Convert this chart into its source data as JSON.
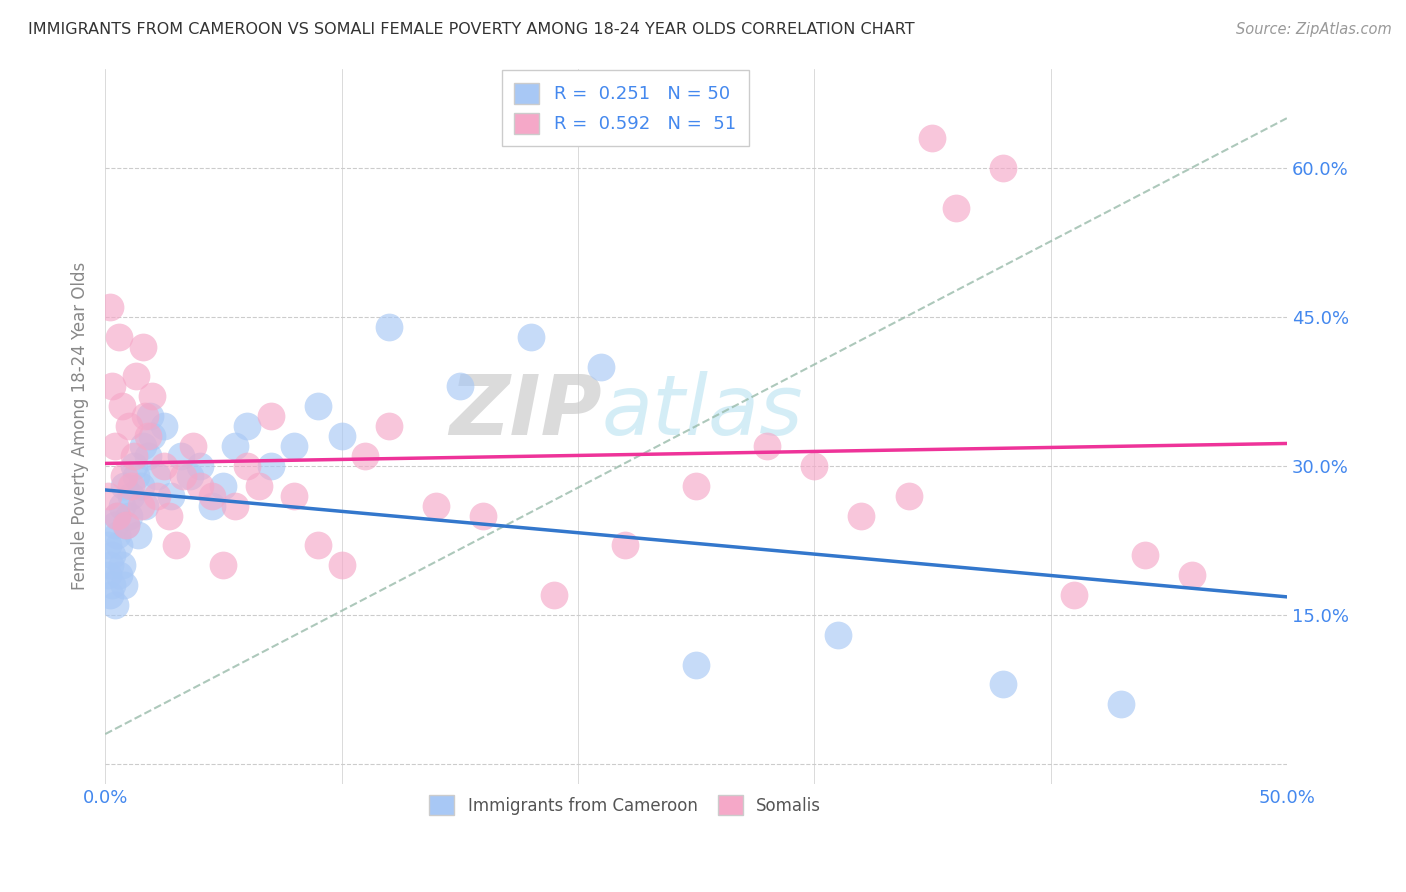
{
  "title": "IMMIGRANTS FROM CAMEROON VS SOMALI FEMALE POVERTY AMONG 18-24 YEAR OLDS CORRELATION CHART",
  "source": "Source: ZipAtlas.com",
  "ylabel": "Female Poverty Among 18-24 Year Olds",
  "xlim": [
    0.0,
    0.5
  ],
  "ylim": [
    -0.02,
    0.7
  ],
  "cameroon_R": 0.251,
  "cameroon_N": 50,
  "somali_R": 0.592,
  "somali_N": 51,
  "cameroon_color": "#a8c8f5",
  "somali_color": "#f5a8c8",
  "trend_cameroon_color": "#3377cc",
  "trend_somali_color": "#ee3399",
  "trend_dashed_color": "#99bbaa",
  "watermark_zip": "ZIP",
  "watermark_atlas": "atlas",
  "legend_label_1": "Immigrants from Cameroon",
  "legend_label_2": "Somalis",
  "cameroon_x": [
    0.001,
    0.001,
    0.002,
    0.002,
    0.003,
    0.003,
    0.004,
    0.004,
    0.005,
    0.005,
    0.006,
    0.006,
    0.007,
    0.007,
    0.008,
    0.008,
    0.009,
    0.01,
    0.011,
    0.012,
    0.013,
    0.014,
    0.015,
    0.016,
    0.017,
    0.018,
    0.019,
    0.02,
    0.022,
    0.025,
    0.028,
    0.032,
    0.036,
    0.04,
    0.045,
    0.05,
    0.055,
    0.06,
    0.07,
    0.08,
    0.09,
    0.1,
    0.12,
    0.15,
    0.18,
    0.21,
    0.25,
    0.31,
    0.38,
    0.43
  ],
  "cameroon_y": [
    0.22,
    0.19,
    0.2,
    0.17,
    0.21,
    0.18,
    0.24,
    0.16,
    0.23,
    0.25,
    0.19,
    0.22,
    0.2,
    0.26,
    0.18,
    0.28,
    0.24,
    0.25,
    0.27,
    0.3,
    0.29,
    0.23,
    0.28,
    0.32,
    0.26,
    0.31,
    0.35,
    0.33,
    0.29,
    0.34,
    0.27,
    0.31,
    0.29,
    0.3,
    0.26,
    0.28,
    0.32,
    0.34,
    0.3,
    0.32,
    0.36,
    0.33,
    0.44,
    0.38,
    0.43,
    0.4,
    0.1,
    0.13,
    0.08,
    0.06
  ],
  "somali_x": [
    0.001,
    0.002,
    0.003,
    0.004,
    0.005,
    0.006,
    0.007,
    0.008,
    0.009,
    0.01,
    0.011,
    0.012,
    0.013,
    0.015,
    0.016,
    0.017,
    0.018,
    0.02,
    0.022,
    0.025,
    0.027,
    0.03,
    0.033,
    0.037,
    0.04,
    0.045,
    0.05,
    0.055,
    0.06,
    0.065,
    0.07,
    0.08,
    0.09,
    0.1,
    0.11,
    0.12,
    0.14,
    0.16,
    0.19,
    0.22,
    0.25,
    0.28,
    0.3,
    0.32,
    0.34,
    0.35,
    0.36,
    0.38,
    0.41,
    0.44,
    0.46
  ],
  "somali_y": [
    0.27,
    0.46,
    0.38,
    0.32,
    0.25,
    0.43,
    0.36,
    0.29,
    0.24,
    0.34,
    0.28,
    0.31,
    0.39,
    0.26,
    0.42,
    0.35,
    0.33,
    0.37,
    0.27,
    0.3,
    0.25,
    0.22,
    0.29,
    0.32,
    0.28,
    0.27,
    0.2,
    0.26,
    0.3,
    0.28,
    0.35,
    0.27,
    0.22,
    0.2,
    0.31,
    0.34,
    0.26,
    0.25,
    0.17,
    0.22,
    0.28,
    0.32,
    0.3,
    0.25,
    0.27,
    0.63,
    0.56,
    0.6,
    0.17,
    0.21,
    0.19
  ]
}
